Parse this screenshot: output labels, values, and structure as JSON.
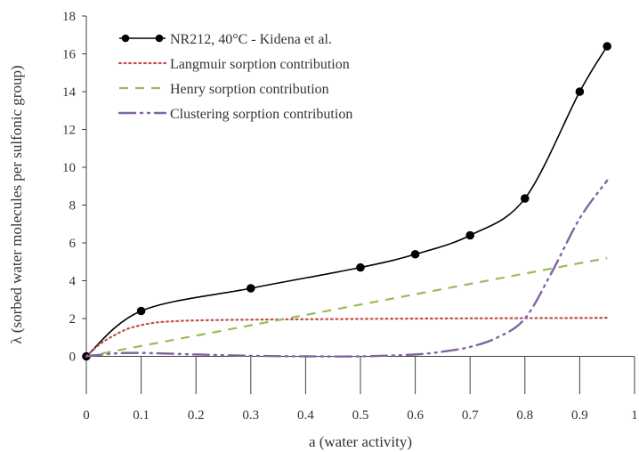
{
  "chart_data": {
    "type": "line",
    "xlabel": "a (water activity)",
    "ylabel": "λ (sorbed water molecules per sulfonic group)",
    "xlim": [
      0,
      1
    ],
    "ylim": [
      -2,
      18
    ],
    "x_ticks": [
      0,
      0.1,
      0.2,
      0.3,
      0.4,
      0.5,
      0.6,
      0.7,
      0.8,
      0.9,
      1
    ],
    "x_tick_labels": [
      "0",
      "0.1",
      "0.2",
      "0.3",
      "0.4",
      "0.5",
      "0.6",
      "0.7",
      "0.8",
      "0.9",
      "1"
    ],
    "y_ticks": [
      0,
      2,
      4,
      6,
      8,
      10,
      12,
      14,
      16,
      18
    ],
    "y_tick_labels": [
      "0",
      "2",
      "4",
      "6",
      "8",
      "10",
      "12",
      "14",
      "16",
      "18"
    ],
    "grid": false,
    "legend_position": "top-left",
    "series": [
      {
        "name": "NR212, 40°C - Kidena et al.",
        "style": "solid-markers",
        "color": "#000000",
        "points": [
          [
            0,
            0
          ],
          [
            0.1,
            2.4
          ],
          [
            0.3,
            3.6
          ],
          [
            0.5,
            4.7
          ],
          [
            0.6,
            5.4
          ],
          [
            0.7,
            6.4
          ],
          [
            0.8,
            8.35
          ],
          [
            0.9,
            14.0
          ],
          [
            0.95,
            16.4
          ]
        ]
      },
      {
        "name": "Langmuir sorption contribution",
        "style": "dotted",
        "color": "#c0504d",
        "points": [
          [
            0,
            0
          ],
          [
            0.025,
            0.65
          ],
          [
            0.05,
            1.1
          ],
          [
            0.075,
            1.45
          ],
          [
            0.1,
            1.65
          ],
          [
            0.125,
            1.78
          ],
          [
            0.15,
            1.84
          ],
          [
            0.2,
            1.9
          ],
          [
            0.3,
            1.94
          ],
          [
            0.5,
            1.98
          ],
          [
            0.7,
            2.01
          ],
          [
            0.9,
            2.03
          ],
          [
            0.95,
            2.04
          ]
        ]
      },
      {
        "name": "Henry sorption contribution",
        "style": "dashed",
        "color": "#9bbb59",
        "points": [
          [
            0,
            0
          ],
          [
            0.95,
            5.2
          ]
        ]
      },
      {
        "name": "Clustering sorption contribution",
        "style": "dash-dot-dot",
        "color": "#8064a2",
        "points": [
          [
            0,
            0
          ],
          [
            0.05,
            0.15
          ],
          [
            0.1,
            0.18
          ],
          [
            0.2,
            0.1
          ],
          [
            0.3,
            0.03
          ],
          [
            0.4,
            0.0
          ],
          [
            0.5,
            0.0
          ],
          [
            0.6,
            0.1
          ],
          [
            0.65,
            0.25
          ],
          [
            0.7,
            0.5
          ],
          [
            0.75,
            1.0
          ],
          [
            0.8,
            2.0
          ],
          [
            0.85,
            4.5
          ],
          [
            0.9,
            7.3
          ],
          [
            0.95,
            9.3
          ]
        ]
      }
    ]
  }
}
